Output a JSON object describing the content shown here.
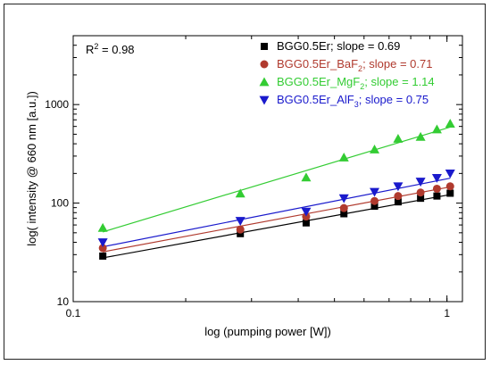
{
  "chart_data": {
    "type": "scatter",
    "xscale": "log",
    "yscale": "log",
    "xlim": [
      0.1,
      1.1
    ],
    "ylim": [
      10,
      5000
    ],
    "xlabel": "log (pumping power [W])",
    "ylabel": "log( intensity @ 660 nm [a.u.])",
    "x_ticks": [
      {
        "value": 0.1,
        "label": "0.1"
      },
      {
        "value": 1,
        "label": "1"
      }
    ],
    "y_ticks": [
      {
        "value": 10,
        "label": "10"
      },
      {
        "value": 100,
        "label": "100"
      },
      {
        "value": 1000,
        "label": "1000"
      }
    ],
    "annotation": {
      "text": "R",
      "sup": "2",
      "tail": " = 0.98"
    },
    "legend_position": "top-right",
    "series": [
      {
        "name": "BGG0.5Er",
        "name_sub": "",
        "name_tail": "; slope = 0.69",
        "marker": "square",
        "color": "#000000",
        "text_color": "#000000",
        "x": [
          0.12,
          0.28,
          0.42,
          0.53,
          0.64,
          0.74,
          0.85,
          0.94,
          1.02
        ],
        "y": [
          29,
          49,
          63,
          78,
          93,
          103,
          112,
          118,
          126
        ],
        "fit": [
          [
            0.12,
            27.8
          ],
          [
            1.02,
            122
          ]
        ]
      },
      {
        "name": "BGG0.5Er_BaF",
        "name_sub": "2",
        "name_tail": "; slope = 0.71",
        "marker": "circle",
        "color": "#b03a2e",
        "text_color": "#b03a2e",
        "x": [
          0.12,
          0.28,
          0.42,
          0.53,
          0.64,
          0.74,
          0.85,
          0.94,
          1.02
        ],
        "y": [
          35,
          54,
          73,
          89,
          105,
          118,
          128,
          140,
          148
        ],
        "fit": [
          [
            0.12,
            32
          ],
          [
            1.02,
            146
          ]
        ]
      },
      {
        "name": "BGG0.5Er_MgF",
        "name_sub": "2",
        "name_tail": "; slope = 1.14",
        "marker": "triangle-up",
        "color": "#33cc33",
        "text_color": "#33cc33",
        "x": [
          0.12,
          0.28,
          0.42,
          0.53,
          0.64,
          0.74,
          0.85,
          0.94,
          1.02
        ],
        "y": [
          56,
          125,
          182,
          290,
          350,
          450,
          470,
          560,
          640
        ],
        "fit": [
          [
            0.12,
            51
          ],
          [
            1.02,
            590
          ]
        ]
      },
      {
        "name": "BGG0.5Er_AlF",
        "name_sub": "3",
        "name_tail": "; slope = 0.75",
        "marker": "triangle-down",
        "color": "#1a1acc",
        "text_color": "#1a1acc",
        "x": [
          0.12,
          0.28,
          0.42,
          0.53,
          0.64,
          0.74,
          0.85,
          0.94,
          1.02
        ],
        "y": [
          40,
          66,
          82,
          112,
          130,
          148,
          165,
          180,
          200
        ],
        "fit": [
          [
            0.12,
            36
          ],
          [
            1.02,
            179
          ]
        ]
      }
    ]
  }
}
